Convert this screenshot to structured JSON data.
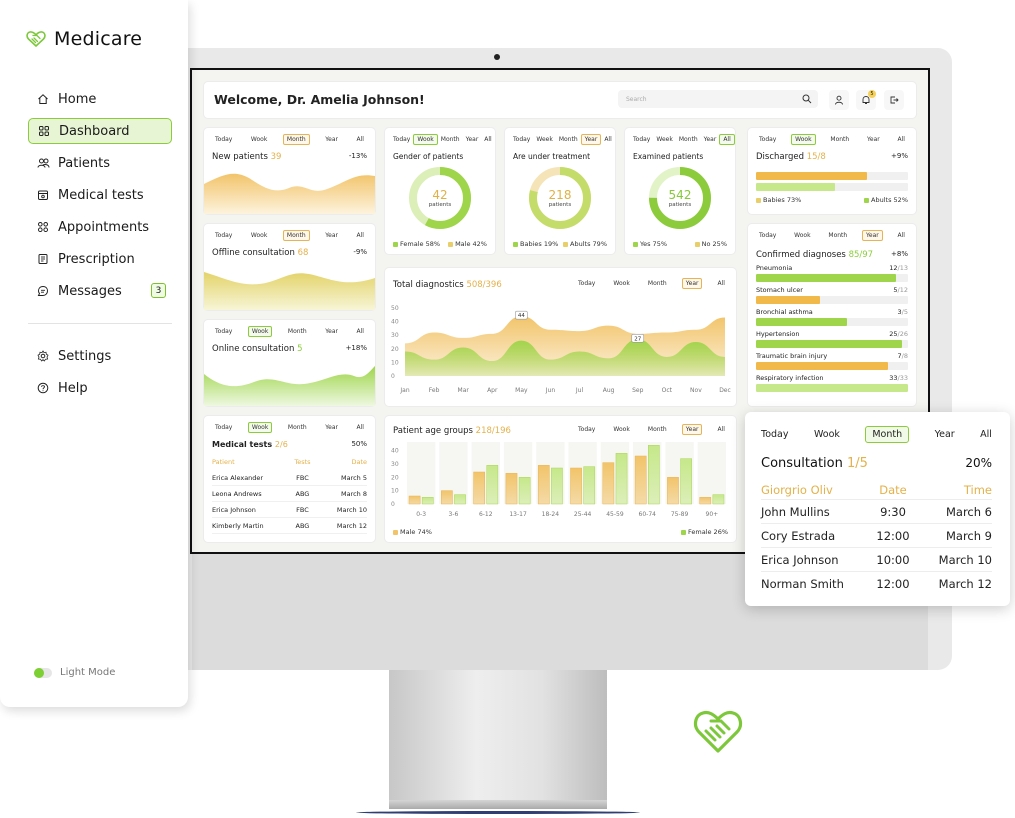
{
  "brand": {
    "name": "Medicare"
  },
  "sidebar": {
    "items": [
      {
        "label": "Home",
        "icon": "home-icon"
      },
      {
        "label": "Dashboard",
        "icon": "grid-icon",
        "active": true
      },
      {
        "label": "Patients",
        "icon": "users-icon"
      },
      {
        "label": "Medical tests",
        "icon": "test-icon"
      },
      {
        "label": "Appointments",
        "icon": "appointments-icon"
      },
      {
        "label": "Prescription",
        "icon": "prescription-icon"
      },
      {
        "label": "Messages",
        "icon": "message-icon",
        "badge": "3"
      }
    ],
    "bottom_items": [
      {
        "label": "Settings",
        "icon": "gear-icon"
      },
      {
        "label": "Help",
        "icon": "help-icon"
      }
    ],
    "light_mode_label": "Light Mode"
  },
  "header": {
    "welcome": "Welcome, Dr. Amelia Johnson!",
    "search_placeholder": "Search",
    "notif_count": "5"
  },
  "tabs": {
    "today": "Today",
    "week": "Wook",
    "week2": "Week",
    "month": "Month",
    "year": "Year",
    "all": "All"
  },
  "new_patients": {
    "title": "New patients",
    "count": "39",
    "pct": "-13%"
  },
  "offline": {
    "title": "Offline consultation",
    "count": "68",
    "pct": "-9%"
  },
  "online": {
    "title": "Online consultation",
    "count": "5",
    "pct": "+18%"
  },
  "gender": {
    "title": "Gender of patients",
    "value": "42",
    "unit": "patients",
    "leg1": "Female 58%",
    "leg2": "Male 42%",
    "share": 0.58
  },
  "treatment": {
    "title": "Are under treatment",
    "value": "218",
    "unit": "patients",
    "leg1": "Babies 19%",
    "leg2": "Abults 79%",
    "share": 0.79
  },
  "examined": {
    "title": "Examined patients",
    "value": "542",
    "unit": "patients",
    "leg1": "Yes 75%",
    "leg2": "No 25%",
    "share": 0.75
  },
  "discharged": {
    "title": "Discharged",
    "count": "15/8",
    "pct": "+9%",
    "leg1": "Babies 73%",
    "leg2": "Abults 52%",
    "bars": [
      0.73,
      0.52
    ]
  },
  "diagnoses": {
    "title": "Confirmed diagnoses",
    "count": "85/97",
    "pct": "+8%",
    "items": [
      {
        "name": "Pneumonia",
        "a": "12",
        "b": "/13",
        "frac": 0.92,
        "color": "#9ed54a"
      },
      {
        "name": "Stomach ulcer",
        "a": "5",
        "b": "/12",
        "frac": 0.42,
        "color": "#f0b94a"
      },
      {
        "name": "Bronchial asthma",
        "a": "3",
        "b": "/5",
        "frac": 0.6,
        "color": "#9ed54a"
      },
      {
        "name": "Hypertension",
        "a": "25",
        "b": "/26",
        "frac": 0.96,
        "color": "#9ed54a"
      },
      {
        "name": "Traumatic brain injury",
        "a": "7",
        "b": "/8",
        "frac": 0.87,
        "color": "#f0b94a"
      },
      {
        "name": "Respiratory infection",
        "a": "33",
        "b": "/33",
        "frac": 1.0,
        "color": "#c6e88a"
      }
    ]
  },
  "medical_tests": {
    "title": "Medical tests",
    "count": "2/6",
    "pct": "50%",
    "headers": [
      "Patient",
      "Tests",
      "Date"
    ],
    "rows": [
      [
        "Erica Alexander",
        "FBC",
        "March 5"
      ],
      [
        "Leona Andrews",
        "ABG",
        "March 8"
      ],
      [
        "Erica Johnson",
        "FBC",
        "March 10"
      ],
      [
        "Kimberly Martin",
        "ABG",
        "March 12"
      ]
    ]
  },
  "chart_data": [
    {
      "type": "area",
      "title": "Total diagnostics",
      "count": "508/396",
      "x": [
        "Jan",
        "Feb",
        "Mar",
        "Apr",
        "May",
        "Jun",
        "Jul",
        "Aug",
        "Sep",
        "Oct",
        "Nov",
        "Dec"
      ],
      "yticks": [
        "50",
        "40",
        "30",
        "20",
        "10",
        "0"
      ],
      "ylim": [
        0,
        50
      ],
      "series": [
        {
          "values": [
            24,
            32,
            28,
            31,
            44,
            34,
            33,
            37,
            31,
            32,
            34,
            43
          ],
          "color": "#f2c46a"
        },
        {
          "values": [
            18,
            12,
            21,
            11,
            26,
            12,
            18,
            13,
            27,
            14,
            25,
            14
          ],
          "color": "#9ed54a"
        }
      ],
      "markers": [
        {
          "label": "44",
          "x": 4,
          "y": 44
        },
        {
          "label": "27",
          "x": 8,
          "y": 27
        }
      ]
    },
    {
      "type": "bar",
      "title": "Patient age groups",
      "count": "218/196",
      "categories": [
        "0-3",
        "3-6",
        "6-12",
        "13-17",
        "18-24",
        "25-44",
        "45-59",
        "60-74",
        "75-89",
        "90+"
      ],
      "yticks": [
        "40",
        "30",
        "20",
        "10",
        "0"
      ],
      "ylim": [
        0,
        45
      ],
      "series": [
        {
          "name": "Male 74%",
          "values": [
            6,
            10,
            24,
            23,
            29,
            27,
            31,
            36,
            20,
            5
          ],
          "color": "#f2c46a"
        },
        {
          "name": "Female 26%",
          "values": [
            5,
            7,
            29,
            20,
            27,
            28,
            38,
            44,
            34,
            7
          ],
          "color": "#c6e88a"
        }
      ]
    }
  ],
  "consultation": {
    "title": "Consultation",
    "count": "1/5",
    "pct": "20%",
    "headers": [
      "Giorgrio Oliv",
      "Date",
      "Time"
    ],
    "rows": [
      [
        "John Mullins",
        "9:30",
        "March 6"
      ],
      [
        "Cory Estrada",
        "12:00",
        "March 9"
      ],
      [
        "Erica Johnson",
        "10:00",
        "March 10"
      ],
      [
        "Norman Smith",
        "12:00",
        "March 12"
      ]
    ]
  },
  "colors": {
    "accent_green": "#8ccc3c",
    "accent_yellow": "#e4b14a"
  }
}
